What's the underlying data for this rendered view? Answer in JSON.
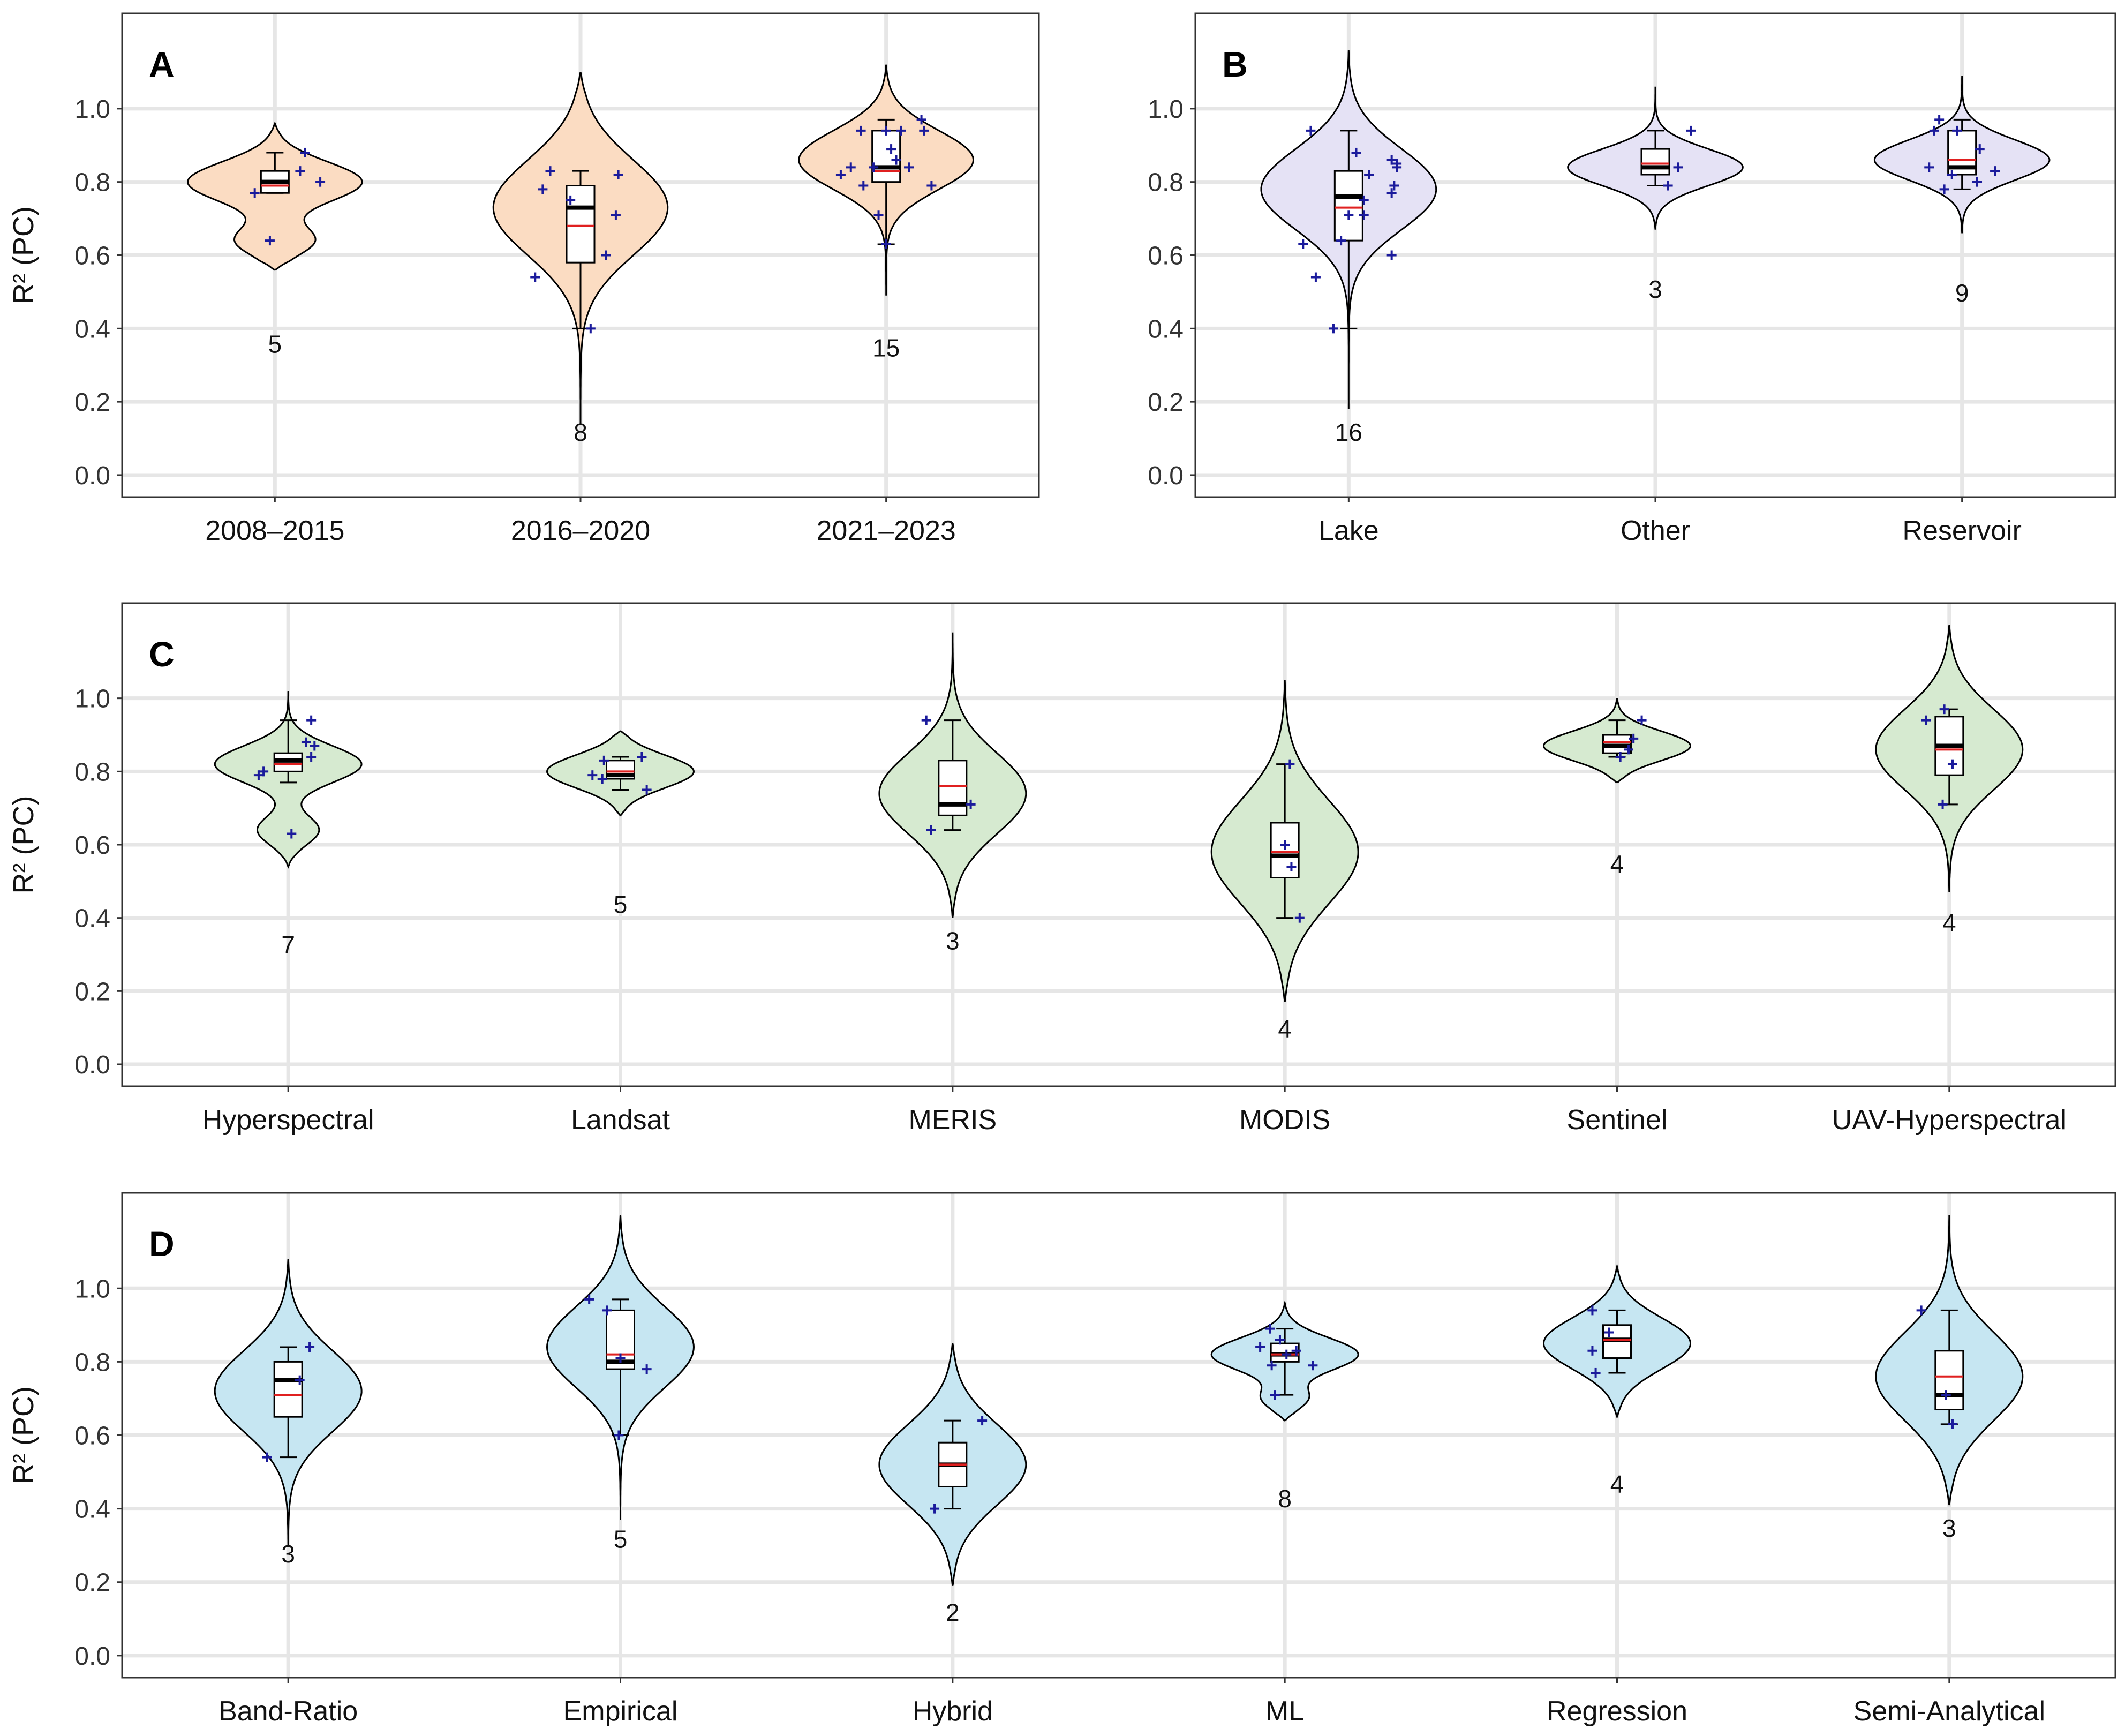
{
  "figure": {
    "y_axis_label": "R² (PC)",
    "y_ticks": [
      "0.0",
      "0.2",
      "0.4",
      "0.6",
      "0.8",
      "1.0"
    ]
  },
  "colors": {
    "A": "#fbdcc2",
    "B": "#e5e2f5",
    "C": "#d6ead0",
    "D": "#c6e6f2",
    "point": "#1b1b9c",
    "mean": "#e02020",
    "median": "#000000",
    "grid": "#e6e6e6"
  },
  "chart_data": [
    {
      "panel": "A",
      "type": "violin",
      "title": "A",
      "xlabel": "",
      "ylabel": "R² (PC)",
      "ylim": [
        -0.06,
        1.26
      ],
      "categories": [
        "2008–2015",
        "2016–2020",
        "2021–2023"
      ],
      "groups": [
        {
          "label": "2008–2015",
          "n": "5",
          "n_y": 0.36,
          "violin_range": [
            0.56,
            0.96
          ],
          "modes": [
            {
              "y": 0.8,
              "w": 1.0,
              "s": 0.055
            },
            {
              "y": 0.64,
              "w": 0.45,
              "s": 0.04
            }
          ],
          "box": {
            "min": 0.77,
            "q1": 0.77,
            "median": 0.8,
            "mean": 0.79,
            "q3": 0.83,
            "max": 0.88
          },
          "points": [
            [
              -0.08,
              0.77
            ],
            [
              -0.02,
              0.64
            ],
            [
              0.1,
              0.83
            ],
            [
              0.12,
              0.88
            ],
            [
              0.18,
              0.8
            ]
          ]
        },
        {
          "label": "2016–2020",
          "n": "8",
          "n_y": 0.12,
          "violin_range": [
            0.14,
            1.1
          ],
          "modes": [
            {
              "y": 0.73,
              "w": 1.0,
              "s": 0.13
            }
          ],
          "box": {
            "min": 0.4,
            "q1": 0.58,
            "median": 0.73,
            "mean": 0.68,
            "q3": 0.79,
            "max": 0.83
          },
          "points": [
            [
              -0.18,
              0.54
            ],
            [
              -0.15,
              0.78
            ],
            [
              -0.12,
              0.83
            ],
            [
              -0.04,
              0.75
            ],
            [
              0.04,
              0.4
            ],
            [
              0.1,
              0.6
            ],
            [
              0.14,
              0.71
            ],
            [
              0.15,
              0.82
            ]
          ]
        },
        {
          "label": "2021–2023",
          "n": "15",
          "n_y": 0.35,
          "violin_range": [
            0.49,
            1.12
          ],
          "modes": [
            {
              "y": 0.86,
              "w": 1.0,
              "s": 0.08
            }
          ],
          "box": {
            "min": 0.63,
            "q1": 0.8,
            "median": 0.84,
            "mean": 0.83,
            "q3": 0.94,
            "max": 0.97
          },
          "points": [
            [
              -0.18,
              0.82
            ],
            [
              -0.14,
              0.84
            ],
            [
              -0.1,
              0.94
            ],
            [
              -0.09,
              0.79
            ],
            [
              -0.05,
              0.84
            ],
            [
              -0.03,
              0.71
            ],
            [
              0.0,
              0.94
            ],
            [
              0.0,
              0.63
            ],
            [
              0.02,
              0.89
            ],
            [
              0.04,
              0.86
            ],
            [
              0.06,
              0.94
            ],
            [
              0.09,
              0.84
            ],
            [
              0.14,
              0.97
            ],
            [
              0.15,
              0.94
            ],
            [
              0.18,
              0.79
            ]
          ]
        }
      ]
    },
    {
      "panel": "B",
      "type": "violin",
      "title": "B",
      "xlabel": "",
      "ylabel": "R² (PC)",
      "ylim": [
        -0.06,
        1.26
      ],
      "categories": [
        "Lake",
        "Other",
        "Reservoir"
      ],
      "groups": [
        {
          "label": "Lake",
          "n": "16",
          "n_y": 0.12,
          "violin_range": [
            0.18,
            1.16
          ],
          "modes": [
            {
              "y": 0.78,
              "w": 1.0,
              "s": 0.11
            }
          ],
          "box": {
            "min": 0.4,
            "q1": 0.64,
            "median": 0.76,
            "mean": 0.73,
            "q3": 0.83,
            "max": 0.94
          },
          "points": [
            [
              -0.18,
              0.63
            ],
            [
              -0.15,
              0.94
            ],
            [
              -0.13,
              0.54
            ],
            [
              -0.06,
              0.4
            ],
            [
              -0.03,
              0.64
            ],
            [
              0.0,
              0.71
            ],
            [
              0.03,
              0.88
            ],
            [
              0.06,
              0.71
            ],
            [
              0.06,
              0.75
            ],
            [
              0.08,
              0.82
            ],
            [
              0.17,
              0.77
            ],
            [
              0.17,
              0.86
            ],
            [
              0.17,
              0.6
            ],
            [
              0.18,
              0.79
            ],
            [
              0.19,
              0.84
            ],
            [
              0.19,
              0.85
            ]
          ]
        },
        {
          "label": "Other",
          "n": "3",
          "n_y": 0.51,
          "violin_range": [
            0.67,
            1.06
          ],
          "modes": [
            {
              "y": 0.84,
              "w": 1.0,
              "s": 0.05
            }
          ],
          "box": {
            "min": 0.79,
            "q1": 0.82,
            "median": 0.84,
            "mean": 0.85,
            "q3": 0.89,
            "max": 0.94
          },
          "points": [
            [
              0.05,
              0.79
            ],
            [
              0.09,
              0.84
            ],
            [
              0.14,
              0.94
            ]
          ]
        },
        {
          "label": "Reservoir",
          "n": "9",
          "n_y": 0.5,
          "violin_range": [
            0.66,
            1.09
          ],
          "modes": [
            {
              "y": 0.86,
              "w": 1.0,
              "s": 0.055
            }
          ],
          "box": {
            "min": 0.78,
            "q1": 0.82,
            "median": 0.84,
            "mean": 0.86,
            "q3": 0.94,
            "max": 0.97
          },
          "points": [
            [
              -0.13,
              0.84
            ],
            [
              -0.11,
              0.94
            ],
            [
              -0.09,
              0.97
            ],
            [
              -0.07,
              0.78
            ],
            [
              -0.04,
              0.82
            ],
            [
              -0.02,
              0.94
            ],
            [
              0.06,
              0.8
            ],
            [
              0.07,
              0.89
            ],
            [
              0.13,
              0.83
            ]
          ]
        }
      ]
    },
    {
      "panel": "C",
      "type": "violin",
      "title": "C",
      "xlabel": "",
      "ylabel": "R² (PC)",
      "ylim": [
        -0.06,
        1.26
      ],
      "categories": [
        "Hyperspectral",
        "Landsat",
        "MERIS",
        "MODIS",
        "Sentinel",
        "UAV-Hyperspectral"
      ],
      "groups": [
        {
          "label": "Hyperspectral",
          "n": "7",
          "n_y": 0.33,
          "violin_range": [
            0.54,
            1.02
          ],
          "modes": [
            {
              "y": 0.82,
              "w": 1.0,
              "s": 0.05
            },
            {
              "y": 0.64,
              "w": 0.42,
              "s": 0.04
            }
          ],
          "box": {
            "min": 0.77,
            "q1": 0.8,
            "median": 0.83,
            "mean": 0.82,
            "q3": 0.85,
            "max": 0.94
          },
          "points": [
            [
              -0.18,
              0.79
            ],
            [
              -0.15,
              0.8
            ],
            [
              0.02,
              0.63
            ],
            [
              0.11,
              0.88
            ],
            [
              0.14,
              0.84
            ],
            [
              0.14,
              0.94
            ],
            [
              0.16,
              0.87
            ]
          ]
        },
        {
          "label": "Landsat",
          "n": "5",
          "n_y": 0.44,
          "violin_range": [
            0.68,
            0.91
          ],
          "modes": [
            {
              "y": 0.8,
              "w": 1.0,
              "s": 0.045
            }
          ],
          "box": {
            "min": 0.75,
            "q1": 0.78,
            "median": 0.79,
            "mean": 0.8,
            "q3": 0.83,
            "max": 0.84
          },
          "points": [
            [
              -0.17,
              0.79
            ],
            [
              -0.11,
              0.78
            ],
            [
              -0.1,
              0.83
            ],
            [
              0.13,
              0.84
            ],
            [
              0.16,
              0.75
            ]
          ]
        },
        {
          "label": "MERIS",
          "n": "3",
          "n_y": 0.34,
          "violin_range": [
            0.4,
            1.18
          ],
          "modes": [
            {
              "y": 0.74,
              "w": 1.0,
              "s": 0.11
            }
          ],
          "box": {
            "min": 0.64,
            "q1": 0.68,
            "median": 0.71,
            "mean": 0.76,
            "q3": 0.83,
            "max": 0.94
          },
          "points": [
            [
              -0.16,
              0.94
            ],
            [
              -0.13,
              0.64
            ],
            [
              0.11,
              0.71
            ]
          ]
        },
        {
          "label": "MODIS",
          "n": "4",
          "n_y": 0.1,
          "violin_range": [
            0.17,
            1.05
          ],
          "modes": [
            {
              "y": 0.58,
              "w": 1.0,
              "s": 0.14
            }
          ],
          "box": {
            "min": 0.4,
            "q1": 0.51,
            "median": 0.57,
            "mean": 0.58,
            "q3": 0.66,
            "max": 0.82
          },
          "points": [
            [
              0.0,
              0.6
            ],
            [
              0.03,
              0.82
            ],
            [
              0.04,
              0.54
            ],
            [
              0.09,
              0.4
            ]
          ]
        },
        {
          "label": "Sentinel",
          "n": "4",
          "n_y": 0.55,
          "violin_range": [
            0.77,
            1.0
          ],
          "modes": [
            {
              "y": 0.87,
              "w": 1.0,
              "s": 0.04
            }
          ],
          "box": {
            "min": 0.84,
            "q1": 0.85,
            "median": 0.87,
            "mean": 0.88,
            "q3": 0.9,
            "max": 0.94
          },
          "points": [
            [
              0.02,
              0.84
            ],
            [
              0.07,
              0.86
            ],
            [
              0.1,
              0.89
            ],
            [
              0.15,
              0.94
            ]
          ]
        },
        {
          "label": "UAV-Hyperspectral",
          "n": "4",
          "n_y": 0.39,
          "violin_range": [
            0.47,
            1.2
          ],
          "modes": [
            {
              "y": 0.86,
              "w": 1.0,
              "s": 0.11
            }
          ],
          "box": {
            "min": 0.71,
            "q1": 0.79,
            "median": 0.87,
            "mean": 0.86,
            "q3": 0.95,
            "max": 0.97
          },
          "points": [
            [
              -0.14,
              0.94
            ],
            [
              -0.04,
              0.71
            ],
            [
              -0.03,
              0.97
            ],
            [
              0.02,
              0.82
            ]
          ]
        }
      ]
    },
    {
      "panel": "D",
      "type": "violin",
      "title": "D",
      "xlabel": "",
      "ylabel": "R² (PC)",
      "ylim": [
        -0.06,
        1.26
      ],
      "categories": [
        "Band-Ratio",
        "Empirical",
        "Hybrid",
        "ML",
        "Regression",
        "Semi-Analytical"
      ],
      "groups": [
        {
          "label": "Band-Ratio",
          "n": "3",
          "n_y": 0.28,
          "violin_range": [
            0.3,
            1.08
          ],
          "modes": [
            {
              "y": 0.72,
              "w": 1.0,
              "s": 0.11
            }
          ],
          "box": {
            "min": 0.54,
            "q1": 0.65,
            "median": 0.75,
            "mean": 0.71,
            "q3": 0.8,
            "max": 0.84
          },
          "points": [
            [
              -0.13,
              0.54
            ],
            [
              0.07,
              0.75
            ],
            [
              0.13,
              0.84
            ]
          ]
        },
        {
          "label": "Empirical",
          "n": "5",
          "n_y": 0.32,
          "violin_range": [
            0.37,
            1.2
          ],
          "modes": [
            {
              "y": 0.84,
              "w": 1.0,
              "s": 0.11
            }
          ],
          "box": {
            "min": 0.6,
            "q1": 0.78,
            "median": 0.8,
            "mean": 0.82,
            "q3": 0.94,
            "max": 0.97
          },
          "points": [
            [
              -0.19,
              0.97
            ],
            [
              -0.08,
              0.94
            ],
            [
              -0.01,
              0.6
            ],
            [
              0.0,
              0.81
            ],
            [
              0.16,
              0.78
            ]
          ]
        },
        {
          "label": "Hybrid",
          "n": "2",
          "n_y": 0.12,
          "violin_range": [
            0.19,
            0.85
          ],
          "modes": [
            {
              "y": 0.52,
              "w": 1.0,
              "s": 0.11
            }
          ],
          "box": {
            "min": 0.4,
            "q1": 0.46,
            "median": 0.52,
            "mean": 0.52,
            "q3": 0.58,
            "max": 0.64
          },
          "points": [
            [
              -0.11,
              0.4
            ],
            [
              0.18,
              0.64
            ]
          ]
        },
        {
          "label": "ML",
          "n": "8",
          "n_y": 0.43,
          "violin_range": [
            0.64,
            0.96
          ],
          "modes": [
            {
              "y": 0.82,
              "w": 1.0,
              "s": 0.045
            },
            {
              "y": 0.7,
              "w": 0.3,
              "s": 0.03
            }
          ],
          "box": {
            "min": 0.71,
            "q1": 0.8,
            "median": 0.82,
            "mean": 0.82,
            "q3": 0.85,
            "max": 0.89
          },
          "points": [
            [
              -0.15,
              0.84
            ],
            [
              -0.09,
              0.89
            ],
            [
              -0.08,
              0.79
            ],
            [
              -0.06,
              0.71
            ],
            [
              -0.03,
              0.86
            ],
            [
              0.01,
              0.82
            ],
            [
              0.07,
              0.83
            ],
            [
              0.17,
              0.79
            ]
          ]
        },
        {
          "label": "Regression",
          "n": "4",
          "n_y": 0.47,
          "violin_range": [
            0.65,
            1.06
          ],
          "modes": [
            {
              "y": 0.85,
              "w": 1.0,
              "s": 0.07
            }
          ],
          "box": {
            "min": 0.77,
            "q1": 0.81,
            "median": 0.86,
            "mean": 0.86,
            "q3": 0.9,
            "max": 0.94
          },
          "points": [
            [
              -0.15,
              0.94
            ],
            [
              -0.15,
              0.83
            ],
            [
              -0.13,
              0.77
            ],
            [
              -0.05,
              0.88
            ]
          ]
        },
        {
          "label": "Semi-Analytical",
          "n": "3",
          "n_y": 0.35,
          "violin_range": [
            0.41,
            1.2
          ],
          "modes": [
            {
              "y": 0.76,
              "w": 1.0,
              "s": 0.12
            }
          ],
          "box": {
            "min": 0.63,
            "q1": 0.67,
            "median": 0.71,
            "mean": 0.76,
            "q3": 0.83,
            "max": 0.94
          },
          "points": [
            [
              -0.17,
              0.94
            ],
            [
              -0.02,
              0.71
            ],
            [
              0.02,
              0.63
            ]
          ]
        }
      ]
    }
  ]
}
